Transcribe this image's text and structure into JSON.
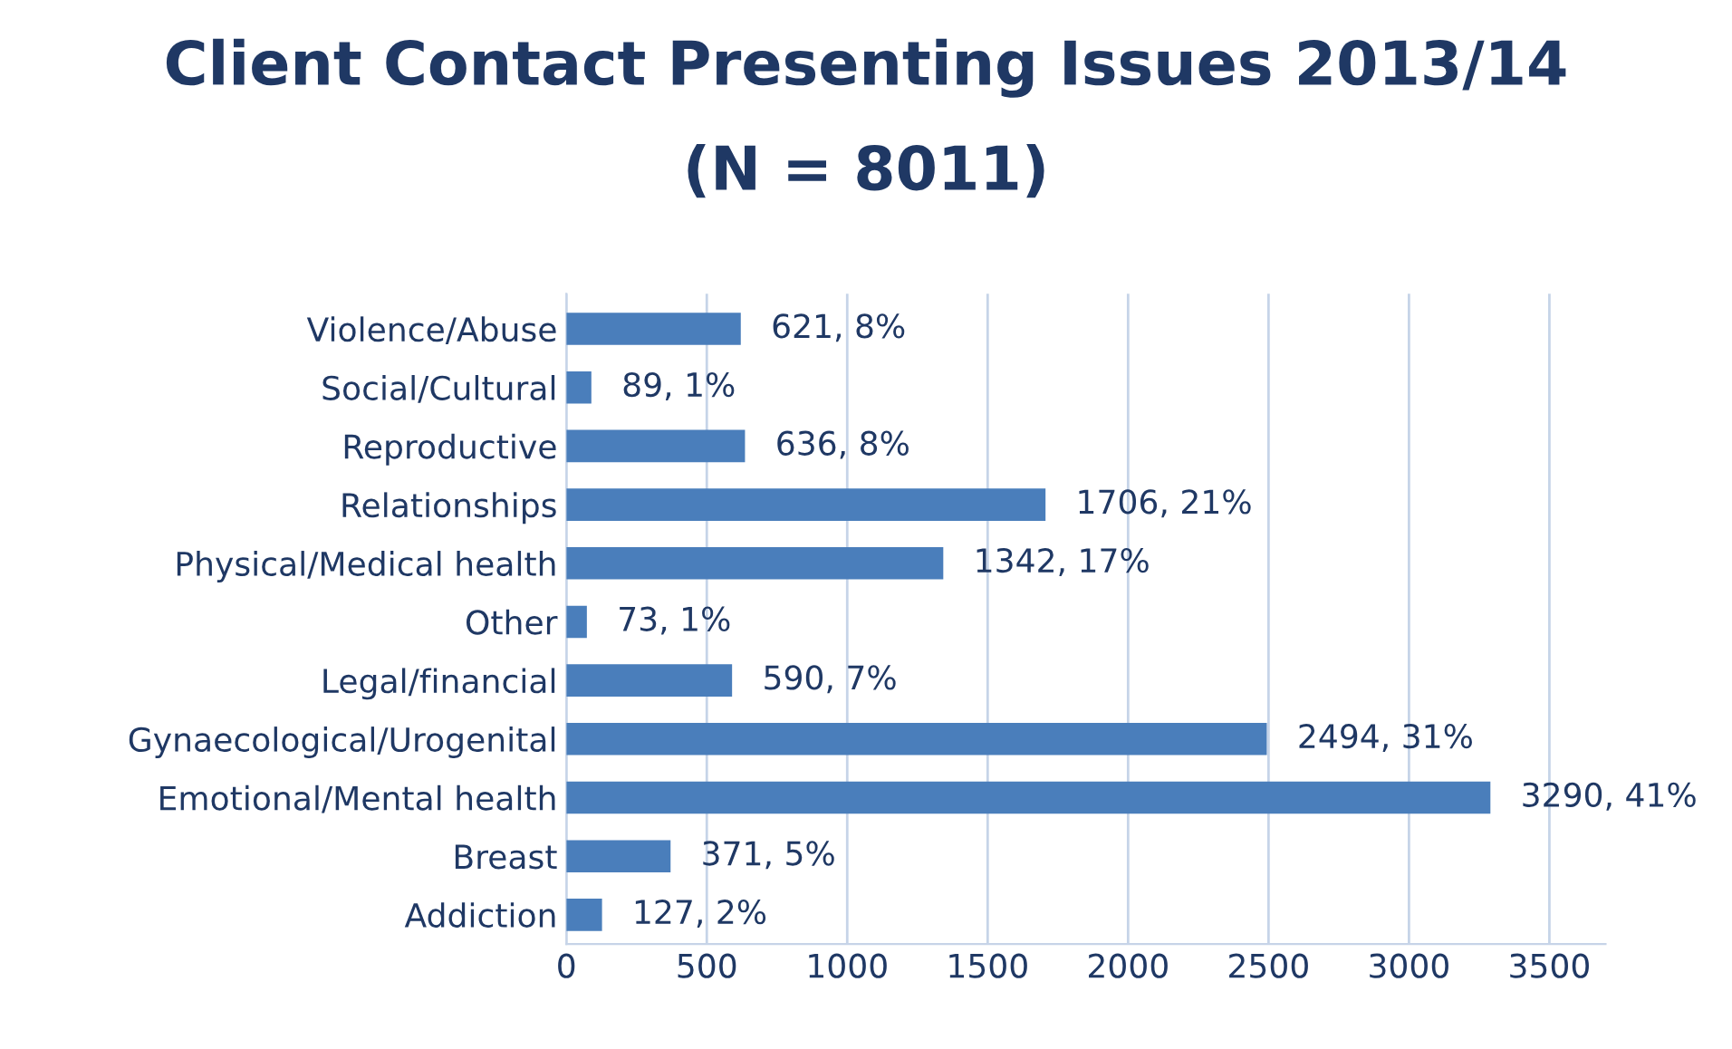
{
  "chart_data": {
    "type": "bar",
    "orientation": "horizontal",
    "title": "Client Contact Presenting Issues 2013/14",
    "subtitle": "(N = 8011)",
    "categories": [
      "Violence/Abuse",
      "Social/Cultural",
      "Reproductive",
      "Relationships",
      "Physical/Medical health",
      "Other",
      "Legal/financial",
      "Gynaecological/Urogenital",
      "Emotional/Mental health",
      "Breast",
      "Addiction"
    ],
    "values": [
      621,
      89,
      636,
      1706,
      1342,
      73,
      590,
      2494,
      3290,
      371,
      127
    ],
    "value_labels": [
      "621, 8%",
      "89, 1%",
      "636, 8%",
      "1706, 21%",
      "1342, 17%",
      "73, 1%",
      "590, 7%",
      "2494, 31%",
      "3290, 41%",
      "371, 5%",
      "127, 2%"
    ],
    "color": "#4a7ebb",
    "xlim": [
      0,
      3700
    ],
    "xticks": [
      0,
      500,
      1000,
      1500,
      2000,
      2500,
      3000,
      3500
    ],
    "grid": "x",
    "legend": false
  }
}
